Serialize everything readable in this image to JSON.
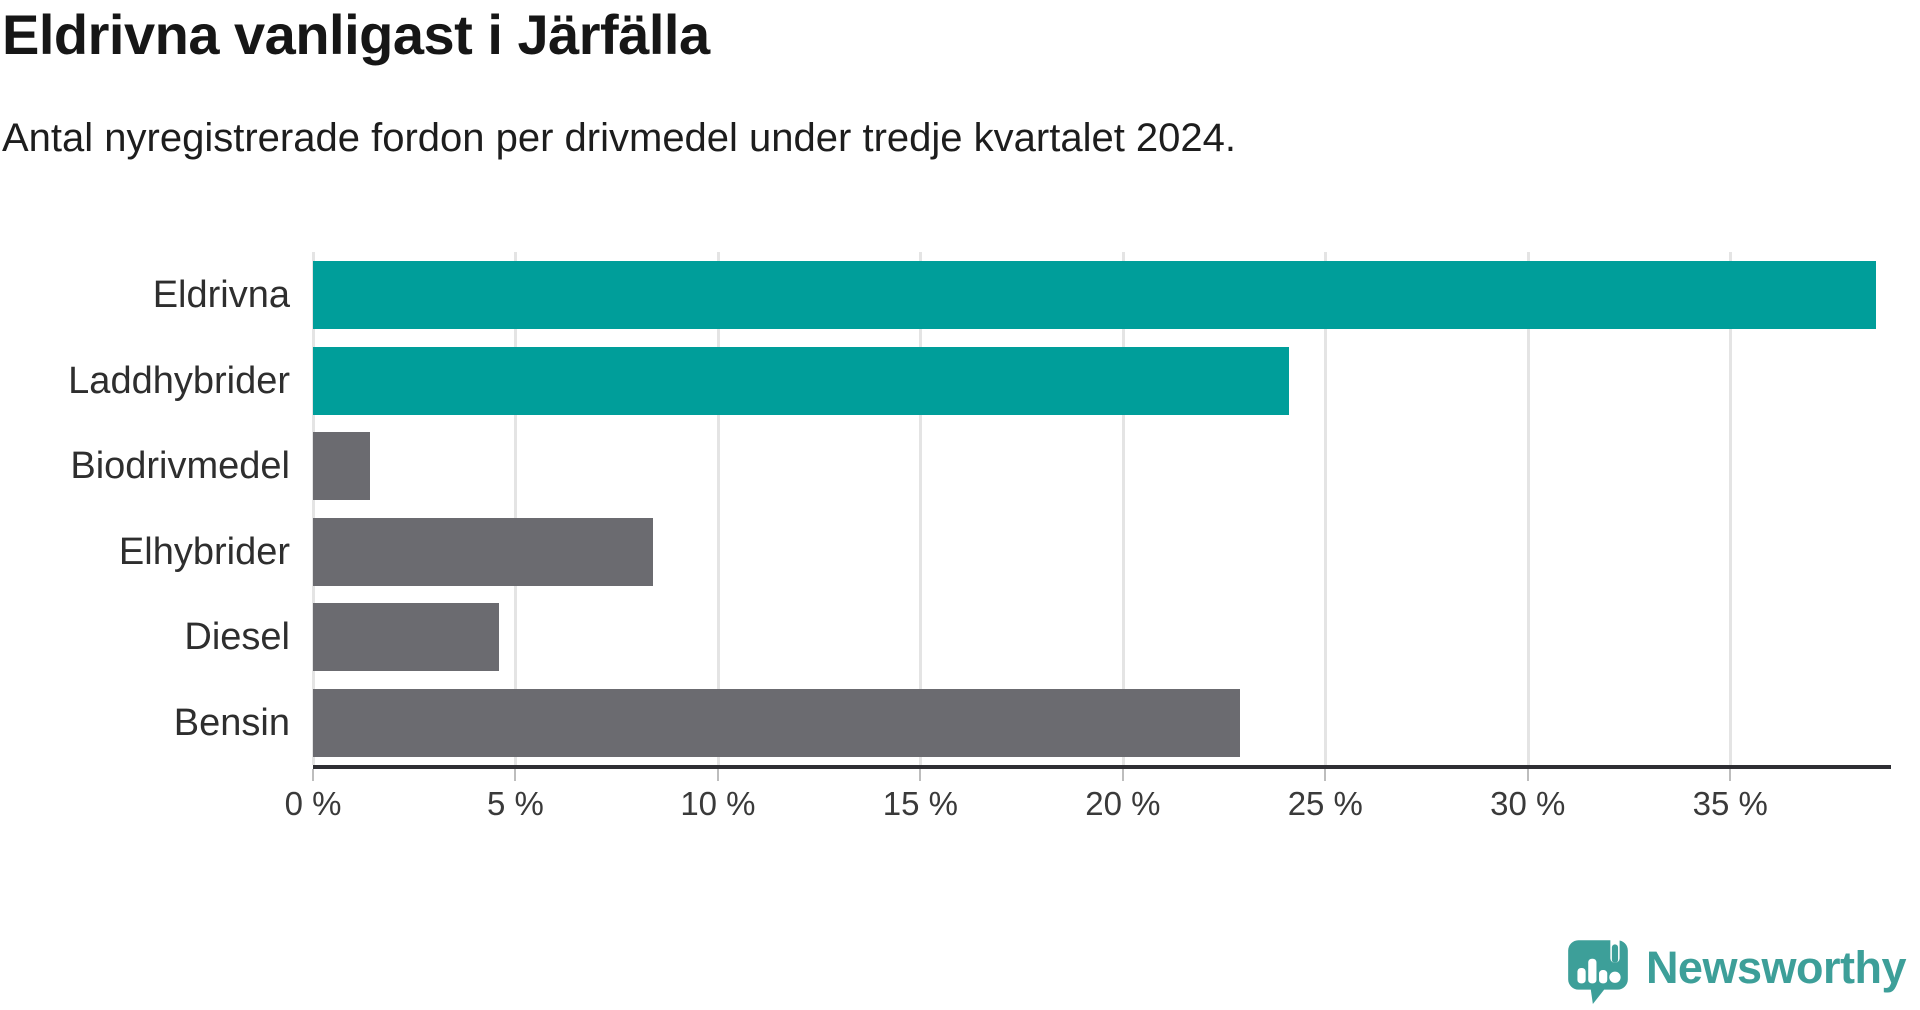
{
  "title": "Eldrivna vanligast i Järfälla",
  "subtitle": "Antal nyregistrerade fordon per drivmedel under tredje kvartalet 2024.",
  "colors": {
    "bar_highlight": "#009e9a",
    "bar_default": "#6b6b70",
    "axis": "#2e2e33",
    "gridline": "#e4e4e4",
    "logo_teal": "#3d9f99"
  },
  "chart_data": {
    "type": "bar",
    "orientation": "horizontal",
    "title": "Eldrivna vanligast i Järfälla",
    "subtitle": "Antal nyregistrerade fordon per drivmedel under tredje kvartalet 2024.",
    "categories": [
      "Eldrivna",
      "Laddhybrider",
      "Biodrivmedel",
      "Elhybrider",
      "Diesel",
      "Bensin"
    ],
    "values": [
      38.6,
      24.1,
      1.4,
      8.4,
      4.6,
      22.9
    ],
    "unit": "%",
    "highlighted": [
      true,
      true,
      false,
      false,
      false,
      false
    ],
    "xlabel": "",
    "ylabel": "",
    "xlim": [
      0,
      38.6
    ],
    "x_ticks": [
      0,
      5,
      10,
      15,
      20,
      25,
      30,
      35
    ],
    "x_tick_labels": [
      "0 %",
      "5 %",
      "10 %",
      "15 %",
      "20 %",
      "25 %",
      "30 %",
      "35 %"
    ],
    "grid": true,
    "legend": false
  },
  "logo": {
    "text": "Newsworthy",
    "icon": "newsworthy-speech-bubble-bar-chart-icon"
  }
}
